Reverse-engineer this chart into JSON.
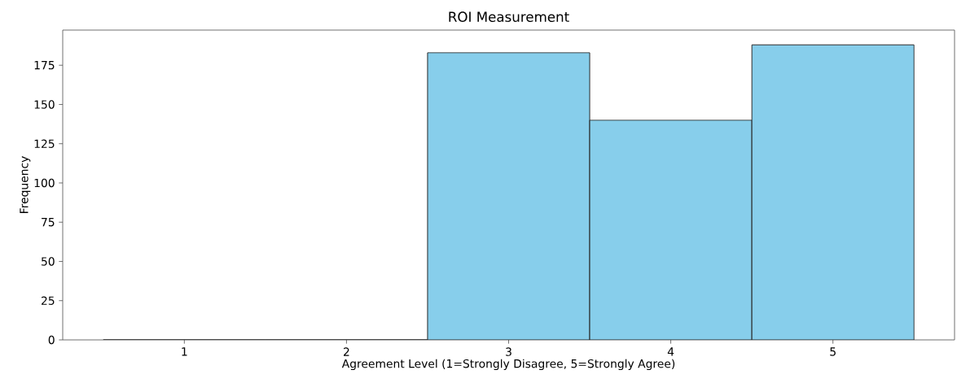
{
  "chart_data": {
    "type": "histogram",
    "title": "ROI Measurement",
    "xlabel": "Agreement Level (1=Strongly Disagree, 5=Strongly Agree)",
    "ylabel": "Frequency",
    "bins": [
      0.5,
      1.5,
      2.5,
      3.5,
      4.5,
      5.5
    ],
    "values": [
      0,
      0,
      183,
      140,
      188
    ],
    "color": "#87ceeb",
    "xlim": [
      0.25,
      5.75
    ],
    "ylim": [
      0,
      197.4
    ],
    "xticks": [
      1,
      2,
      3,
      4,
      5
    ],
    "yticks": [
      0,
      25,
      50,
      75,
      100,
      125,
      150,
      175
    ],
    "grid": false
  }
}
